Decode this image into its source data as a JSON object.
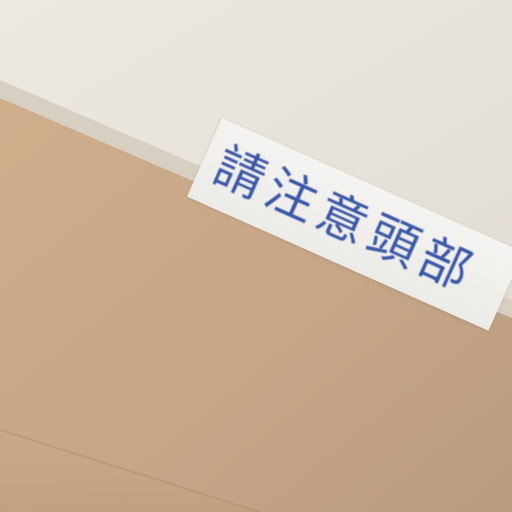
{
  "sign": {
    "text": "請注意頭部"
  },
  "colors": {
    "ceiling": "#e9e5de",
    "wall": "#c8a98a",
    "wall_shadow": "#b99a7c",
    "trim": "#dbd4ca",
    "sign_background": "#f2f1ee",
    "sign_text": "#2b4aa3"
  }
}
